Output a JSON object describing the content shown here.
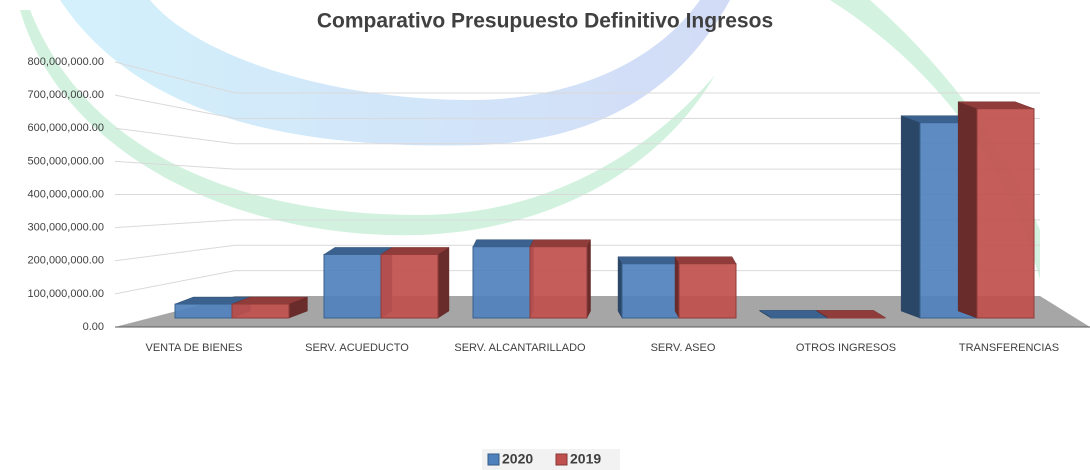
{
  "chart_data": {
    "type": "bar3d",
    "title": "Comparativo Presupuesto Definitivo Ingresos",
    "categories": [
      "VENTA DE BIENES",
      "SERV. ACUEDUCTO",
      "SERV. ALCANTARILLADO",
      "SERV. ASEO",
      "OTROS INGRESOS",
      "TRANSFERENCIAS"
    ],
    "series": [
      {
        "name": "2020",
        "color": "#4f81bd",
        "values": [
          45000000,
          205000000,
          230000000,
          175000000,
          2000000,
          630000000
        ]
      },
      {
        "name": "2019",
        "color": "#c0504d",
        "values": [
          45000000,
          205000000,
          230000000,
          175000000,
          2000000,
          675000000
        ]
      }
    ],
    "ylim": [
      0,
      800000000
    ],
    "yticks": [
      {
        "value": 0,
        "label": "0.00"
      },
      {
        "value": 100000000,
        "label": "100,000,000.00"
      },
      {
        "value": 200000000,
        "label": "200,000,000.00"
      },
      {
        "value": 300000000,
        "label": "300,000,000.00"
      },
      {
        "value": 400000000,
        "label": "400,000,000.00"
      },
      {
        "value": 500000000,
        "label": "500,000,000.00"
      },
      {
        "value": 600000000,
        "label": "600,000,000.00"
      },
      {
        "value": 700000000,
        "label": "700,000,000.00"
      },
      {
        "value": 800000000,
        "label": "800,000,000.00"
      }
    ],
    "grid": true,
    "legend": "bottom"
  }
}
